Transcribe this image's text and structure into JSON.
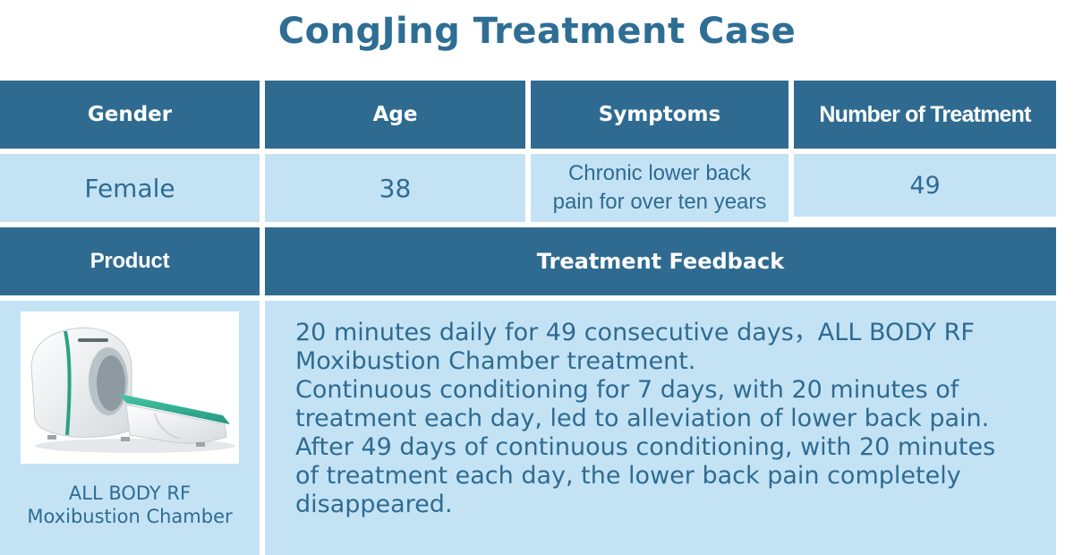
{
  "title": "CongJing Treatment Case",
  "table": {
    "headers": {
      "gender": "Gender",
      "age": "Age",
      "symptoms": "Symptoms",
      "treatments": "Number of Treatment"
    },
    "values": {
      "gender": "Female",
      "age": "38",
      "symptoms_line1": "Chronic lower back",
      "symptoms_line2": "pain for over ten years",
      "treatments": "49"
    },
    "section_headers": {
      "product": "Product",
      "feedback": "Treatment Feedback"
    },
    "product": {
      "name_line1": "ALL BODY RF",
      "name_line2": "Moxibustion Chamber",
      "image_icon": "moxibustion-chamber-image"
    },
    "feedback": {
      "paragraph1": "20 minutes daily for 49 consecutive days，ALL BODY RF Moxibustion Chamber treatment.",
      "paragraph2": "Continuous conditioning for 7 days, with 20 minutes of treatment each day, led to alleviation of lower back pain. After 49 days of continuous conditioning, with 20 minutes of treatment each day, the lower back pain completely disappeared."
    }
  },
  "colors": {
    "header_bg": "#2f6b91",
    "cell_bg": "#c3e3f5",
    "title": "#2e6e94",
    "text": "#2f6b91"
  }
}
